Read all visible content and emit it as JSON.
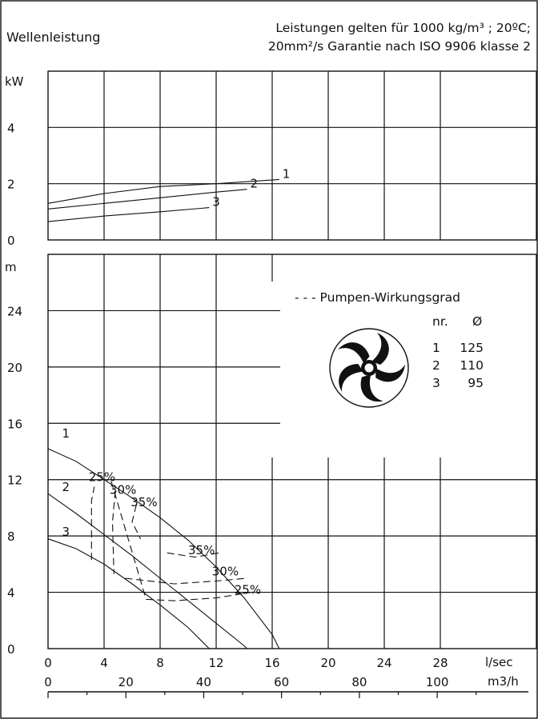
{
  "header": {
    "left": "Wellenleistung",
    "right_line1": "Leistungen gelten für 1000 kg/m³ ; 20ºC;",
    "right_line2": "20mm²/s Garantie nach ISO 9906 klasse 2"
  },
  "legend": {
    "title": "- - - Pumpen-Wirkungsgrad",
    "col_nr": "nr.",
    "col_d": "Ø",
    "rows": [
      {
        "nr": "1",
        "d": "125"
      },
      {
        "nr": "2",
        "d": "110"
      },
      {
        "nr": "3",
        "d": "95"
      }
    ]
  },
  "chart_data": [
    {
      "type": "line",
      "panel": "power",
      "ylabel": "kW",
      "xlabel": "l/sec",
      "xlim": [
        0,
        32
      ],
      "ylim": [
        0,
        6
      ],
      "yticks": [
        0,
        2,
        4
      ],
      "series": [
        {
          "name": "1",
          "x": [
            0,
            4,
            8,
            12,
            16.5
          ],
          "y": [
            1.3,
            1.65,
            1.9,
            2.0,
            2.15
          ]
        },
        {
          "name": "2",
          "x": [
            0,
            4,
            8,
            12,
            14.2
          ],
          "y": [
            1.1,
            1.3,
            1.5,
            1.7,
            1.8
          ]
        },
        {
          "name": "3",
          "x": [
            0,
            4,
            8,
            11.5
          ],
          "y": [
            0.65,
            0.85,
            1.0,
            1.15
          ]
        }
      ]
    },
    {
      "type": "line",
      "panel": "head",
      "ylabel": "m",
      "xlabel": "l/sec",
      "x2label": "m3/h",
      "xlim": [
        0,
        32
      ],
      "ylim": [
        0,
        28
      ],
      "yticks": [
        0,
        4,
        8,
        12,
        16,
        20,
        24
      ],
      "xticks": [
        0,
        4,
        8,
        12,
        16,
        20,
        24,
        28
      ],
      "x2ticks": [
        0,
        20,
        40,
        60,
        80,
        100
      ],
      "series": [
        {
          "name": "1",
          "x": [
            0,
            2,
            4,
            6,
            8,
            10,
            12,
            14,
            16,
            16.5
          ],
          "y": [
            14.2,
            13.3,
            12.0,
            10.7,
            9.3,
            7.7,
            5.8,
            3.6,
            1.0,
            0
          ]
        },
        {
          "name": "2",
          "x": [
            0,
            2,
            4,
            6,
            8,
            10,
            12,
            14,
            14.2
          ],
          "y": [
            11.0,
            9.6,
            8.1,
            6.6,
            5.0,
            3.4,
            1.8,
            0.2,
            0
          ]
        },
        {
          "name": "3",
          "x": [
            0,
            2,
            4,
            6,
            8,
            10,
            11.5
          ],
          "y": [
            7.8,
            7.1,
            6.0,
            4.6,
            3.1,
            1.5,
            0
          ]
        }
      ],
      "efficiency": [
        {
          "label": "25%",
          "x": [
            3.1,
            3.1,
            3.3,
            4.5,
            7,
            9,
            12,
            14.5
          ],
          "y": [
            6.3,
            10.5,
            11.5,
            11.9,
            3.5,
            3.4,
            3.6,
            4.0
          ]
        },
        {
          "label": "30%",
          "x": [
            4.8,
            4.6,
            4.7,
            5.5,
            9,
            12,
            14.2
          ],
          "y": [
            11.2,
            9.0,
            5.3,
            5.0,
            4.6,
            4.8,
            5.0
          ]
        },
        {
          "label": "35%",
          "x": [
            6.3,
            6.0,
            6.6,
            8.5,
            10.5,
            12.2
          ],
          "y": [
            10.2,
            9.0,
            7.8,
            6.8,
            6.5,
            6.8
          ]
        }
      ]
    }
  ]
}
